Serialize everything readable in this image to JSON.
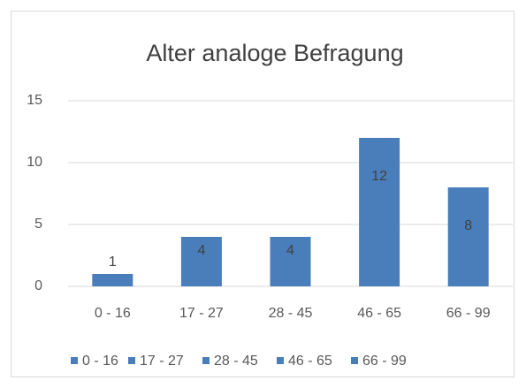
{
  "chart_data": {
    "type": "bar",
    "title": "Alter analoge Befragung",
    "categories": [
      "0 - 16",
      "17 - 27",
      "28 - 45",
      "46 - 65",
      "66 - 99"
    ],
    "values": [
      1,
      4,
      4,
      12,
      8
    ],
    "color": "#4a7ebb",
    "ylim": [
      0,
      15
    ],
    "yticks": [
      0,
      5,
      10,
      15
    ],
    "grid": true,
    "legend": "bottom"
  }
}
